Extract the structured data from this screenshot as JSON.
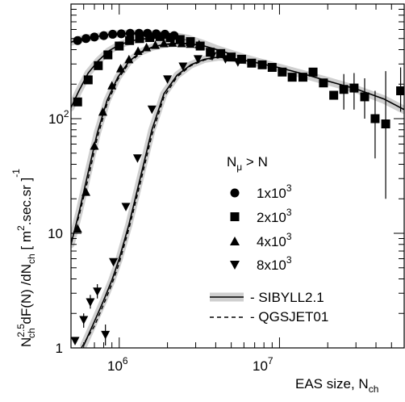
{
  "chart_data": {
    "type": "scatter",
    "x_scale": "log",
    "y_scale": "log",
    "xlim": [
      500000,
      60000000
    ],
    "ylim": [
      1,
      1000
    ],
    "x_ticks": [
      {
        "value": 1000000,
        "base": "10",
        "exp": "6"
      },
      {
        "value": 10000000,
        "base": "10",
        "exp": "7"
      }
    ],
    "y_ticks": [
      {
        "value": 1,
        "label": "1"
      },
      {
        "value": 10,
        "label": "10"
      },
      {
        "value": 100,
        "label": "10",
        "exp": "2"
      }
    ],
    "xlabel": {
      "text": "EAS size, N",
      "sub": "ch"
    },
    "ylabel": {
      "n": "N",
      "n_sup": "2.5",
      "n_sub": "ch",
      "mid": " dF(N) /dN",
      "mid_sub": "ch",
      "units_open": "  [ m",
      "units_sup": "2",
      "units_rest": ".sec.sr ]",
      "units_sup2": "-1"
    },
    "legend": {
      "position": "center-right",
      "title": {
        "n": "N",
        "sub": "μ",
        "rest": " > N"
      },
      "entries": [
        {
          "marker": "circle",
          "base": "1x10",
          "exp": "3"
        },
        {
          "marker": "square",
          "base": "2x10",
          "exp": "3"
        },
        {
          "marker": "triangle-up",
          "base": "4x10",
          "exp": "3"
        },
        {
          "marker": "triangle-down",
          "base": "8x10",
          "exp": "3"
        }
      ],
      "models": [
        {
          "style": "solid-band",
          "label": "- SIBYLL2.1"
        },
        {
          "style": "dashed",
          "label": "- QGSJET01"
        }
      ]
    },
    "series": [
      {
        "marker": "circle",
        "points": [
          {
            "x": 550000,
            "y": 480
          },
          {
            "x": 620000,
            "y": 500
          },
          {
            "x": 700000,
            "y": 515
          },
          {
            "x": 800000,
            "y": 530
          },
          {
            "x": 910000,
            "y": 545
          },
          {
            "x": 1030000,
            "y": 550
          },
          {
            "x": 1170000,
            "y": 555
          },
          {
            "x": 1330000,
            "y": 555
          },
          {
            "x": 1500000,
            "y": 555
          },
          {
            "x": 1700000,
            "y": 550
          },
          {
            "x": 1930000,
            "y": 545
          },
          {
            "x": 2200000,
            "y": 530
          }
        ]
      },
      {
        "marker": "square",
        "points": [
          {
            "x": 550000,
            "y": 140
          },
          {
            "x": 640000,
            "y": 218
          },
          {
            "x": 740000,
            "y": 290
          },
          {
            "x": 850000,
            "y": 360
          },
          {
            "x": 1000000,
            "y": 430
          },
          {
            "x": 1160000,
            "y": 480
          },
          {
            "x": 1340000,
            "y": 500
          },
          {
            "x": 1550000,
            "y": 510
          },
          {
            "x": 1800000,
            "y": 520
          },
          {
            "x": 2080000,
            "y": 510
          },
          {
            "x": 2400000,
            "y": 490
          },
          {
            "x": 2780000,
            "y": 470
          },
          {
            "x": 3200000,
            "y": 430
          },
          {
            "x": 3700000,
            "y": 380
          },
          {
            "x": 4300000,
            "y": 370
          },
          {
            "x": 5000000,
            "y": 345
          },
          {
            "x": 5800000,
            "y": 330
          },
          {
            "x": 6700000,
            "y": 305
          },
          {
            "x": 7800000,
            "y": 295
          },
          {
            "x": 9000000,
            "y": 280
          },
          {
            "x": 10400000,
            "y": 255
          },
          {
            "x": 12000000,
            "y": 230
          },
          {
            "x": 14000000,
            "y": 230
          },
          {
            "x": 16200000,
            "y": 255
          },
          {
            "x": 18800000,
            "y": 205
          },
          {
            "x": 21800000,
            "y": 160
          },
          {
            "x": 25200000,
            "y": 180
          },
          {
            "x": 29200000,
            "y": 185
          },
          {
            "x": 34000000,
            "y": 155
          },
          {
            "x": 39500000,
            "y": 100
          },
          {
            "x": 46000000,
            "y": 90
          },
          {
            "x": 57000000,
            "y": 175
          }
        ],
        "errors": [
          {
            "x": 25200000,
            "lo": 120,
            "hi": 245
          },
          {
            "x": 29200000,
            "lo": 120,
            "hi": 250
          },
          {
            "x": 34000000,
            "lo": 100,
            "hi": 225
          },
          {
            "x": 39500000,
            "lo": 45,
            "hi": 175
          },
          {
            "x": 46000000,
            "lo": 20,
            "hi": 260
          },
          {
            "x": 57000000,
            "lo": 115,
            "hi": 280
          }
        ]
      },
      {
        "marker": "triangle-up",
        "points": [
          {
            "x": 550000,
            "y": 11
          },
          {
            "x": 620000,
            "y": 23
          },
          {
            "x": 700000,
            "y": 58
          },
          {
            "x": 790000,
            "y": 115
          },
          {
            "x": 900000,
            "y": 195
          },
          {
            "x": 1020000,
            "y": 275
          },
          {
            "x": 1150000,
            "y": 330
          },
          {
            "x": 1310000,
            "y": 390
          },
          {
            "x": 1480000,
            "y": 420
          },
          {
            "x": 1680000,
            "y": 440
          },
          {
            "x": 1900000,
            "y": 455
          },
          {
            "x": 2150000,
            "y": 460
          },
          {
            "x": 2450000,
            "y": 455
          },
          {
            "x": 2780000,
            "y": 450
          },
          {
            "x": 3150000,
            "y": 445
          }
        ]
      },
      {
        "marker": "triangle-down",
        "points": [
          {
            "x": 530000,
            "y": 1.15
          },
          {
            "x": 600000,
            "y": 1.75
          },
          {
            "x": 660000,
            "y": 2.5
          },
          {
            "x": 730000,
            "y": 3.1
          },
          {
            "x": 820000,
            "y": 1.3
          },
          {
            "x": 920000,
            "y": 5.6
          },
          {
            "x": 1100000,
            "y": 17
          },
          {
            "x": 1300000,
            "y": 45
          },
          {
            "x": 1600000,
            "y": 120
          },
          {
            "x": 2000000,
            "y": 220
          },
          {
            "x": 2500000,
            "y": 285
          },
          {
            "x": 3100000,
            "y": 330
          },
          {
            "x": 3800000,
            "y": 350
          },
          {
            "x": 4600000,
            "y": 330
          },
          {
            "x": 5500000,
            "y": 310
          }
        ],
        "errors": [
          {
            "x": 600000,
            "lo": 1.5,
            "hi": 2.0
          },
          {
            "x": 660000,
            "lo": 2.2,
            "hi": 2.9
          },
          {
            "x": 730000,
            "lo": 2.7,
            "hi": 3.6
          },
          {
            "x": 820000,
            "lo": 1.05,
            "hi": 1.6
          }
        ]
      }
    ],
    "curves": [
      {
        "model": "SIBYLL2.1",
        "style": "solid-band",
        "lines": [
          [
            [
              500000,
              465
            ],
            [
              560000,
              490
            ],
            [
              630000,
              505
            ],
            [
              720000,
              520
            ],
            [
              850000,
              540
            ],
            [
              1000000,
              550
            ],
            [
              1200000,
              555
            ],
            [
              1500000,
              552
            ],
            [
              1800000,
              545
            ],
            [
              2200000,
              530
            ],
            [
              2700000,
              500
            ],
            [
              3300000,
              455
            ],
            [
              4000000,
              410
            ],
            [
              5000000,
              370
            ],
            [
              6500000,
              330
            ],
            [
              8000000,
              300
            ],
            [
              10000000,
              275
            ],
            [
              15000000,
              235
            ],
            [
              20000000,
              210
            ],
            [
              30000000,
              180
            ],
            [
              45000000,
              145
            ],
            [
              60000000,
              118
            ]
          ],
          [
            [
              500000,
              125
            ],
            [
              560000,
              175
            ],
            [
              640000,
              250
            ],
            [
              740000,
              320
            ],
            [
              860000,
              390
            ],
            [
              1000000,
              440
            ],
            [
              1200000,
              480
            ],
            [
              1500000,
              500
            ],
            [
              1900000,
              505
            ],
            [
              2400000,
              495
            ],
            [
              3000000,
              465
            ],
            [
              3700000,
              420
            ],
            [
              4500000,
              385
            ],
            [
              6000000,
              340
            ],
            [
              8000000,
              305
            ],
            [
              10000000,
              280
            ],
            [
              15000000,
              240
            ],
            [
              20000000,
              215
            ],
            [
              30000000,
              182
            ],
            [
              45000000,
              148
            ],
            [
              60000000,
              120
            ]
          ],
          [
            [
              500000,
              8
            ],
            [
              560000,
              15
            ],
            [
              640000,
              34
            ],
            [
              730000,
              75
            ],
            [
              840000,
              145
            ],
            [
              980000,
              230
            ],
            [
              1150000,
              315
            ],
            [
              1350000,
              380
            ],
            [
              1600000,
              420
            ],
            [
              1900000,
              445
            ],
            [
              2300000,
              455
            ],
            [
              2800000,
              450
            ],
            [
              3400000,
              430
            ],
            [
              4200000,
              395
            ],
            [
              5500000,
              350
            ],
            [
              8000000,
              305
            ],
            [
              12000000,
              260
            ],
            [
              20000000,
              212
            ],
            [
              30000000,
              182
            ],
            [
              45000000,
              148
            ],
            [
              60000000,
              120
            ]
          ],
          [
            [
              600000,
              1.05
            ],
            [
              700000,
              1.7
            ],
            [
              800000,
              2.6
            ],
            [
              900000,
              3.9
            ],
            [
              1000000,
              6
            ],
            [
              1150000,
              12
            ],
            [
              1350000,
              30
            ],
            [
              1600000,
              80
            ],
            [
              1900000,
              165
            ],
            [
              2300000,
              240
            ],
            [
              2800000,
              295
            ],
            [
              3400000,
              330
            ],
            [
              4200000,
              345
            ],
            [
              5200000,
              335
            ],
            [
              7000000,
              310
            ],
            [
              10000000,
              278
            ],
            [
              15000000,
              240
            ],
            [
              20000000,
              213
            ],
            [
              30000000,
              182
            ],
            [
              45000000,
              148
            ],
            [
              60000000,
              120
            ]
          ]
        ]
      },
      {
        "model": "QGSJET01",
        "style": "dashed",
        "lines": [
          [
            [
              500000,
              8.5
            ],
            [
              560000,
              14
            ],
            [
              640000,
              30
            ],
            [
              730000,
              68
            ],
            [
              840000,
              135
            ],
            [
              980000,
              220
            ],
            [
              1150000,
              305
            ],
            [
              1350000,
              372
            ],
            [
              1600000,
              415
            ],
            [
              1900000,
              440
            ],
            [
              2300000,
              452
            ],
            [
              2800000,
              448
            ],
            [
              3400000,
              428
            ]
          ],
          [
            [
              580000,
              1.0
            ],
            [
              700000,
              1.55
            ],
            [
              800000,
              2.4
            ],
            [
              900000,
              3.6
            ],
            [
              1000000,
              5.5
            ],
            [
              1150000,
              11
            ],
            [
              1350000,
              27
            ],
            [
              1600000,
              72
            ],
            [
              1900000,
              155
            ],
            [
              2300000,
              232
            ],
            [
              2800000,
              290
            ],
            [
              3400000,
              325
            ],
            [
              4200000,
              340
            ]
          ]
        ]
      }
    ]
  }
}
